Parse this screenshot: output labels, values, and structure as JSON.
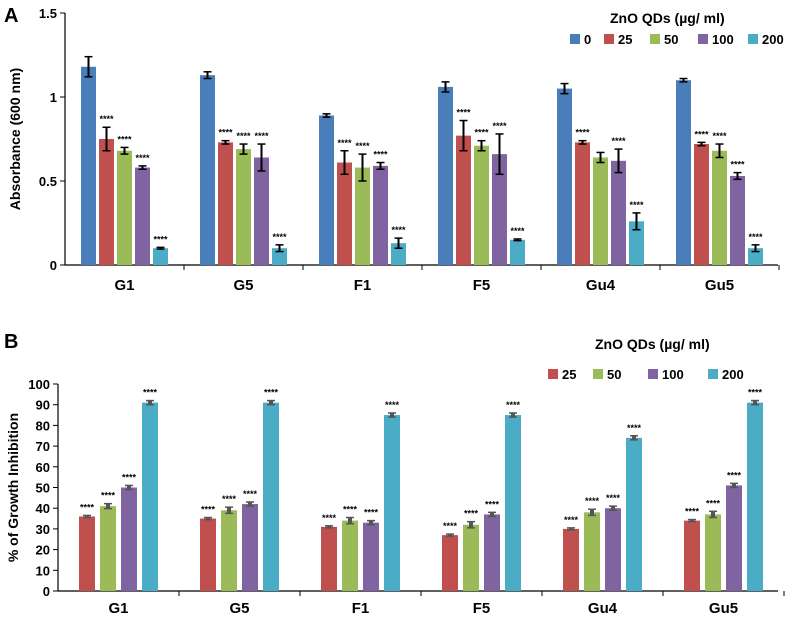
{
  "chart_data": [
    {
      "panel": "A",
      "type": "bar",
      "ylabel": "Absorbance (600 nm)",
      "xlabel": "",
      "ylim": [
        0,
        1.5
      ],
      "yticks": [
        "0",
        "0.5",
        "1",
        "1.5"
      ],
      "categories": [
        "G1",
        "G5",
        "F1",
        "F5",
        "Gu4",
        "Gu5"
      ],
      "legend_title": "ZnO QDs (µg/ ml)",
      "legend_position": "top-right",
      "significance_label": "****",
      "series": [
        {
          "name": "0",
          "color": "#4a7ebb",
          "values": [
            1.18,
            1.13,
            0.89,
            1.06,
            1.05,
            1.1
          ],
          "errors": [
            0.06,
            0.02,
            0.01,
            0.03,
            0.03,
            0.01
          ],
          "significant": [
            false,
            false,
            false,
            false,
            false,
            false
          ]
        },
        {
          "name": "25",
          "color": "#c0504d",
          "values": [
            0.75,
            0.73,
            0.61,
            0.77,
            0.73,
            0.72
          ],
          "errors": [
            0.07,
            0.01,
            0.07,
            0.09,
            0.01,
            0.01
          ],
          "significant": [
            true,
            true,
            true,
            true,
            true,
            true
          ]
        },
        {
          "name": "50",
          "color": "#9bbb59",
          "values": [
            0.68,
            0.69,
            0.58,
            0.71,
            0.64,
            0.68
          ],
          "errors": [
            0.02,
            0.03,
            0.08,
            0.03,
            0.03,
            0.04
          ],
          "significant": [
            true,
            true,
            true,
            true,
            false,
            true
          ]
        },
        {
          "name": "100",
          "color": "#8064a2",
          "values": [
            0.58,
            0.64,
            0.59,
            0.66,
            0.62,
            0.53
          ],
          "errors": [
            0.01,
            0.08,
            0.02,
            0.12,
            0.07,
            0.02
          ],
          "significant": [
            true,
            true,
            true,
            true,
            true,
            true
          ]
        },
        {
          "name": "200",
          "color": "#4bacc6",
          "values": [
            0.1,
            0.1,
            0.13,
            0.15,
            0.26,
            0.1
          ],
          "errors": [
            0.005,
            0.02,
            0.03,
            0.005,
            0.05,
            0.02
          ],
          "significant": [
            true,
            true,
            true,
            true,
            true,
            true
          ]
        }
      ]
    },
    {
      "panel": "B",
      "type": "bar",
      "ylabel": "% of Growth Inhibition",
      "xlabel": "",
      "ylim": [
        0,
        100
      ],
      "yticks": [
        "0",
        "10",
        "20",
        "30",
        "40",
        "50",
        "60",
        "70",
        "80",
        "90",
        "100"
      ],
      "categories": [
        "G1",
        "G5",
        "F1",
        "F5",
        "Gu4",
        "Gu5"
      ],
      "legend_title": "ZnO QDs (µg/ ml)",
      "legend_position": "top-right",
      "significance_label": "****",
      "series": [
        {
          "name": "25",
          "color": "#c0504d",
          "values": [
            36,
            35,
            31,
            27,
            30,
            34
          ],
          "errors": [
            0.5,
            0.5,
            0.5,
            0.5,
            0.5,
            0.5
          ],
          "significant": [
            true,
            true,
            true,
            true,
            true,
            true
          ]
        },
        {
          "name": "50",
          "color": "#9bbb59",
          "values": [
            41,
            39,
            34,
            32,
            38,
            37
          ],
          "errors": [
            1.2,
            1.5,
            1.5,
            1.5,
            1.5,
            1.5
          ],
          "significant": [
            true,
            true,
            true,
            true,
            true,
            true
          ]
        },
        {
          "name": "100",
          "color": "#8064a2",
          "values": [
            50,
            42,
            33,
            37,
            40,
            51
          ],
          "errors": [
            1,
            1,
            1,
            1,
            1,
            1
          ],
          "significant": [
            true,
            true,
            true,
            true,
            true,
            true
          ]
        },
        {
          "name": "200",
          "color": "#4bacc6",
          "values": [
            91,
            91,
            85,
            85,
            74,
            91
          ],
          "errors": [
            1,
            1,
            1,
            1,
            1,
            1
          ],
          "significant": [
            true,
            true,
            true,
            true,
            true,
            true
          ]
        }
      ]
    }
  ]
}
